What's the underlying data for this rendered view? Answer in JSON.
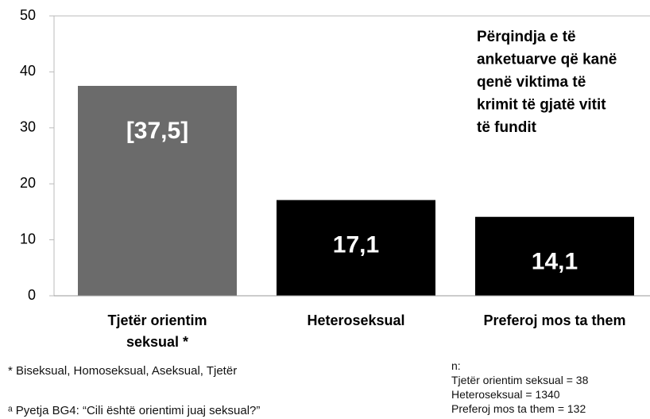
{
  "chart_data": {
    "type": "bar",
    "annotation": [
      "Përqindja e të",
      "anketuarve që kanë",
      "qenë viktima të",
      "krimit të gjatë vitit",
      "të fundit"
    ],
    "categories": [
      "Tjetër orientim seksual *",
      "Heteroseksual",
      "Preferoj mos ta them"
    ],
    "values": [
      37.5,
      17.1,
      14.1
    ],
    "value_labels": [
      "[37,5]",
      "17,1",
      "14,1"
    ],
    "colors": [
      "#6b6b6b",
      "#000000",
      "#000000"
    ],
    "ylim": [
      0,
      50
    ],
    "yticks": [
      0,
      10,
      20,
      30,
      40,
      50
    ],
    "grid": false,
    "footnotes": [
      "* Biseksual, Homoseksual, Aseksual, Tjetër",
      "ᵃ Pyetja BG4: “Cili është orientimi juaj seksual?”"
    ],
    "notes": [
      "n:",
      "Tjetër orientim seksual = 38",
      "Heteroseksual = 1340",
      "Preferoj mos ta them = 132"
    ]
  }
}
